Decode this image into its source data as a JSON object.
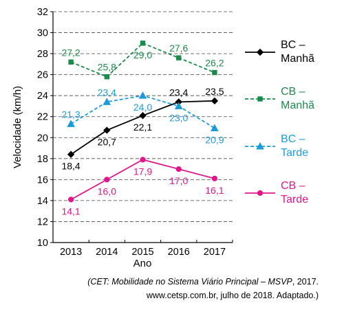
{
  "chart_data": {
    "type": "line",
    "categories": [
      "2013",
      "2014",
      "2015",
      "2016",
      "2017"
    ],
    "ylabel": "Velocidade (km/h)",
    "xlabel": "Ano",
    "ylim": [
      10,
      32
    ],
    "yticks": [
      "10",
      "12",
      "14",
      "16",
      "18",
      "20",
      "22",
      "24",
      "26",
      "28",
      "30",
      "32"
    ],
    "grid": "horizontal dashed",
    "legend_position": "right",
    "series": [
      {
        "name": "BC –\nManhã",
        "color": "#000000",
        "dash": "solid",
        "marker": "diamond",
        "values": [
          18.4,
          20.7,
          22.1,
          23.4,
          23.5
        ],
        "labels": [
          "18,4",
          "20,7",
          "22,1",
          "23,4",
          "23,5"
        ]
      },
      {
        "name": "CB –\nManhã",
        "color": "#1b8a4a",
        "dash": "dashed",
        "marker": "square",
        "values": [
          27.2,
          25.8,
          29.0,
          27.6,
          26.2
        ],
        "labels": [
          "27,2",
          "25,8",
          "29,0",
          "27,6",
          "26,2"
        ]
      },
      {
        "name": "BC –\nTarde",
        "color": "#1d9bd6",
        "dash": "dashed",
        "marker": "triangle",
        "values": [
          21.3,
          23.4,
          24.0,
          23.0,
          20.9
        ],
        "labels": [
          "21,3",
          "23,4",
          "24,0",
          "23,0",
          "20,9"
        ]
      },
      {
        "name": "CB –\nTarde",
        "color": "#e0168a",
        "dash": "solid",
        "marker": "circle",
        "values": [
          14.1,
          16.0,
          17.9,
          17.0,
          16.1
        ],
        "labels": [
          "14,1",
          "16,0",
          "17,9",
          "17,0",
          "16,1"
        ]
      }
    ]
  },
  "caption": {
    "line1_source": "(CET: Mobilidade no Sistema Viário Principal – MSVP",
    "line1_rest": ", 2017.",
    "line2": "www.cetsp.com.br, julho de 2018. Adaptado.)"
  }
}
